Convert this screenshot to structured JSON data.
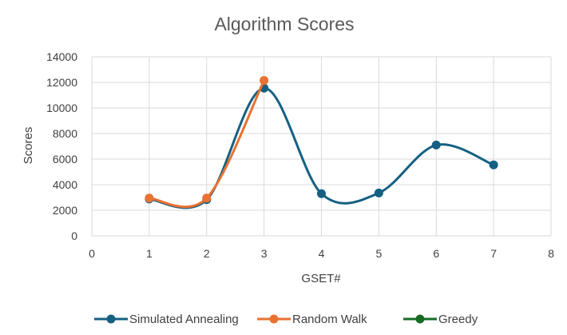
{
  "chart_data": {
    "type": "scatter",
    "title": "Algorithm Scores",
    "xlabel": "GSET#",
    "ylabel": "Scores",
    "xlim": [
      0,
      8
    ],
    "ylim": [
      0,
      14000
    ],
    "x_ticks": [
      "0",
      "1",
      "2",
      "3",
      "4",
      "5",
      "6",
      "7",
      "8"
    ],
    "y_ticks": [
      "0",
      "2000",
      "4000",
      "6000",
      "8000",
      "10000",
      "12000",
      "14000"
    ],
    "grid": true,
    "legend_position": "bottom",
    "line_style": "smooth",
    "series": [
      {
        "name": "Simulated Annealing",
        "color": "#156082",
        "x": [
          1,
          2,
          3,
          4,
          5,
          6,
          7
        ],
        "y": [
          2880,
          2830,
          11550,
          3300,
          3350,
          7100,
          5550
        ]
      },
      {
        "name": "Random Walk",
        "color": "#E97132",
        "x": [
          1,
          2,
          3
        ],
        "y": [
          2950,
          2950,
          12150
        ]
      },
      {
        "name": "Greedy",
        "color": "#196B24",
        "x": [],
        "y": []
      }
    ]
  }
}
